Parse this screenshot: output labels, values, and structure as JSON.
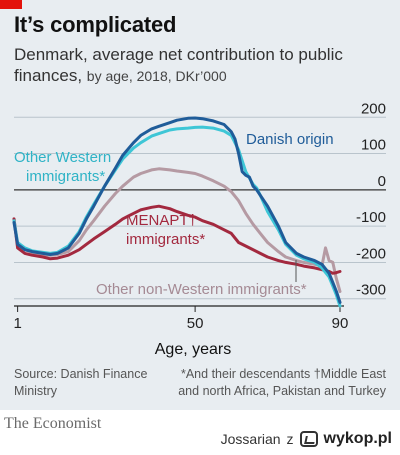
{
  "header": {
    "title": "It’s complicated",
    "subtitle_main": "Denmark, average net contribution to public finances,",
    "subtitle_detail": "by age, 2018, DKr’000"
  },
  "footer": {
    "source": "Source: Danish Finance Ministry",
    "note_star": "*And their descendants",
    "note_dagger": "†Middle East and north Africa, Pakistan and Turkey",
    "brand": "The Economist",
    "credit_user": "Jossarian",
    "credit_sep": "z",
    "credit_site": "wykop.pl"
  },
  "colors": {
    "background": "#e8edf1",
    "danish": "#1f5c99",
    "western": "#3ec6d6",
    "menapt": "#a3293f",
    "non_western": "#b59aa3",
    "red_tag": "#e3120b"
  },
  "chart_data": {
    "type": "line",
    "title": "It’s complicated",
    "xlabel": "Age, years",
    "ylabel": "",
    "xlim": [
      0,
      90
    ],
    "ylim": [
      -320,
      220
    ],
    "xticks": [
      1,
      50,
      90
    ],
    "yticks": [
      200,
      100,
      0,
      -100,
      -200,
      -300
    ],
    "ytick_labels": [
      "200",
      "100",
      "0",
      "-100",
      "-200",
      "-300"
    ],
    "y_axis_side": "right",
    "grid": "horizontal",
    "series": [
      {
        "name": "Danish origin",
        "color": "#1f5c99",
        "x": [
          0,
          1,
          3,
          5,
          8,
          10,
          12,
          15,
          18,
          20,
          22,
          25,
          28,
          30,
          33,
          35,
          38,
          40,
          43,
          45,
          48,
          50,
          52,
          55,
          58,
          60,
          61,
          62,
          63,
          64,
          65,
          66,
          67,
          68,
          70,
          73,
          75,
          78,
          80,
          83,
          85,
          87,
          88,
          89,
          90
        ],
        "y": [
          -90,
          -150,
          -165,
          -170,
          -175,
          -178,
          -175,
          -160,
          -120,
          -80,
          -45,
          10,
          60,
          95,
          130,
          150,
          168,
          175,
          185,
          192,
          197,
          198,
          196,
          190,
          180,
          160,
          140,
          100,
          50,
          40,
          35,
          10,
          0,
          -15,
          -45,
          -100,
          -145,
          -175,
          -185,
          -195,
          -205,
          -230,
          -255,
          -280,
          -310
        ]
      },
      {
        "name": "Other Western immigrants*",
        "color": "#3ec6d6",
        "x": [
          0,
          1,
          3,
          5,
          8,
          10,
          12,
          15,
          18,
          20,
          22,
          25,
          28,
          30,
          33,
          35,
          38,
          40,
          43,
          45,
          48,
          50,
          52,
          55,
          58,
          60,
          62,
          64,
          66,
          67,
          68,
          70,
          73,
          75,
          78,
          80,
          83,
          85,
          87,
          88,
          89,
          90
        ],
        "y": [
          -85,
          -145,
          -160,
          -168,
          -172,
          -175,
          -172,
          -155,
          -115,
          -75,
          -40,
          10,
          55,
          85,
          115,
          130,
          148,
          155,
          165,
          168,
          170,
          172,
          173,
          170,
          162,
          150,
          110,
          50,
          15,
          5,
          -15,
          -60,
          -110,
          -150,
          -180,
          -190,
          -200,
          -215,
          -240,
          -265,
          -290,
          -320
        ]
      },
      {
        "name": "Other non-Western immigrants*",
        "color": "#b59aa3",
        "x": [
          0,
          1,
          3,
          5,
          8,
          10,
          12,
          15,
          18,
          20,
          22,
          25,
          28,
          30,
          33,
          35,
          38,
          40,
          43,
          45,
          48,
          50,
          52,
          55,
          58,
          60,
          62,
          64,
          66,
          68,
          70,
          73,
          75,
          78,
          80,
          83,
          85,
          86,
          87,
          88,
          89,
          90
        ],
        "y": [
          -80,
          -150,
          -165,
          -172,
          -178,
          -180,
          -178,
          -170,
          -140,
          -110,
          -85,
          -45,
          -10,
          10,
          35,
          45,
          55,
          58,
          55,
          52,
          48,
          45,
          38,
          25,
          10,
          -5,
          -30,
          -65,
          -95,
          -120,
          -145,
          -170,
          -185,
          -195,
          -200,
          -205,
          -210,
          -160,
          -195,
          -200,
          -245,
          -280
        ]
      },
      {
        "name": "MENAPT† immigrants*",
        "color": "#a3293f",
        "x": [
          0,
          1,
          3,
          5,
          8,
          10,
          12,
          15,
          18,
          20,
          22,
          25,
          28,
          30,
          33,
          35,
          38,
          40,
          43,
          45,
          48,
          50,
          52,
          55,
          58,
          60,
          62,
          65,
          68,
          70,
          73,
          75,
          78,
          80,
          83,
          85,
          87,
          88,
          89,
          90
        ],
        "y": [
          -80,
          -160,
          -175,
          -180,
          -185,
          -190,
          -188,
          -180,
          -165,
          -150,
          -135,
          -115,
          -95,
          -80,
          -65,
          -55,
          -48,
          -45,
          -52,
          -60,
          -70,
          -75,
          -85,
          -95,
          -110,
          -120,
          -145,
          -160,
          -175,
          -185,
          -195,
          -200,
          -205,
          -210,
          -215,
          -220,
          -225,
          -230,
          -228,
          -225
        ]
      }
    ],
    "labels": {
      "danish": "Danish origin",
      "western_line1": "Other Western",
      "western_line2": "immigrants*",
      "menapt_line1": "MENAPT†",
      "menapt_line2": "immigrants*",
      "non_western": "Other non-Western immigrants*"
    }
  }
}
